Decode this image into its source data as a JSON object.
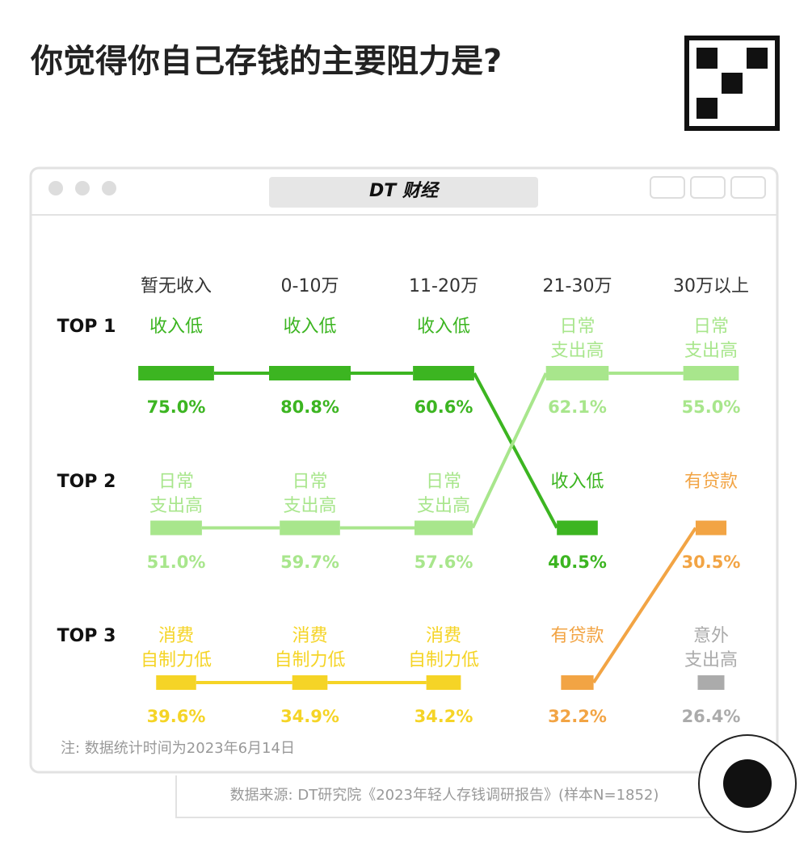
{
  "title": "你觉得你自己存钱的主要阻力是?",
  "window_title": "DT 财经",
  "note": "注: 数据统计时间为2023年6月14日",
  "source": "数据来源: DT研究院《2023年轻人存钱调研报告》(样本N=1852)",
  "chart_data": {
    "type": "rank",
    "categories": [
      "暂无收入",
      "0-10万",
      "11-20万",
      "21-30万",
      "30万以上"
    ],
    "rank_labels": [
      "TOP 1",
      "TOP 2",
      "TOP 3"
    ],
    "series": [
      {
        "name": "收入低",
        "color": "#3cb521",
        "ranks": [
          1,
          1,
          1,
          2,
          null
        ],
        "values": [
          75.0,
          80.8,
          60.6,
          40.5,
          null
        ],
        "value_labels": [
          "75.0%",
          "80.8%",
          "60.6%",
          "40.5%",
          null
        ]
      },
      {
        "name": "日常\n支出高",
        "color": "#a8e68c",
        "ranks": [
          2,
          2,
          2,
          1,
          1
        ],
        "values": [
          51.0,
          59.7,
          57.6,
          62.1,
          55.0
        ],
        "value_labels": [
          "51.0%",
          "59.7%",
          "57.6%",
          "62.1%",
          "55.0%"
        ]
      },
      {
        "name": "消费\n自制力低",
        "color": "#f5d426",
        "ranks": [
          3,
          3,
          3,
          null,
          null
        ],
        "values": [
          39.6,
          34.9,
          34.2,
          null,
          null
        ],
        "value_labels": [
          "39.6%",
          "34.9%",
          "34.2%",
          null,
          null
        ]
      },
      {
        "name": "有贷款",
        "color": "#f2a444",
        "ranks": [
          null,
          null,
          null,
          3,
          2
        ],
        "values": [
          null,
          null,
          null,
          32.2,
          30.5
        ],
        "value_labels": [
          null,
          null,
          null,
          "32.2%",
          "30.5%"
        ]
      },
      {
        "name": "意外\n支出高",
        "color": "#ababab",
        "ranks": [
          null,
          null,
          null,
          null,
          3
        ],
        "values": [
          null,
          null,
          null,
          null,
          26.4
        ],
        "value_labels": [
          null,
          null,
          null,
          null,
          "26.4%"
        ]
      }
    ]
  }
}
